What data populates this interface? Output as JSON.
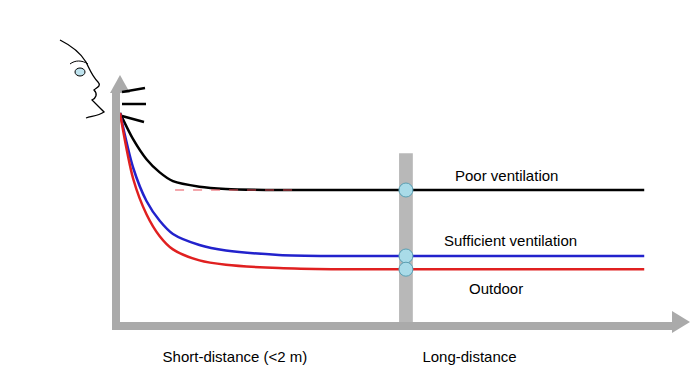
{
  "chart_data": {
    "type": "line",
    "x": [
      0,
      0.25,
      0.5,
      0.75,
      1,
      1.5,
      2,
      3,
      4,
      5.4,
      7,
      9.9
    ],
    "series": [
      {
        "name": "Poor ventilation",
        "color": "#000000",
        "values": [
          9.5,
          8.3,
          7.4,
          6.8,
          6.4,
          6.15,
          6.05,
          6.0,
          6.0,
          6.0,
          6.0,
          6.0
        ]
      },
      {
        "name": "Sufficient ventilation",
        "color": "#2222cc",
        "values": [
          9.5,
          7.0,
          5.5,
          4.6,
          4.0,
          3.5,
          3.25,
          3.05,
          3.0,
          3.0,
          3.0,
          3.0
        ]
      },
      {
        "name": "Outdoor",
        "color": "#e02020",
        "values": [
          9.5,
          6.5,
          4.9,
          3.9,
          3.3,
          2.8,
          2.6,
          2.45,
          2.4,
          2.4,
          2.4,
          2.4
        ]
      }
    ],
    "xlim": [
      0,
      10.5
    ],
    "ylim": [
      0,
      10.5
    ],
    "xticks": [
      {
        "value": 2.17,
        "label": "Short-distance (<2 m)"
      },
      {
        "value": 6.6,
        "label": "Long-distance"
      }
    ],
    "yticks": [],
    "tick_labels": "x",
    "grid": false,
    "highlight_x": 5.4,
    "dashed_line": {
      "x": [
        1.04,
        3.4
      ],
      "y": 6.0,
      "color": "#e8505b",
      "line_style": "dash"
    }
  }
}
